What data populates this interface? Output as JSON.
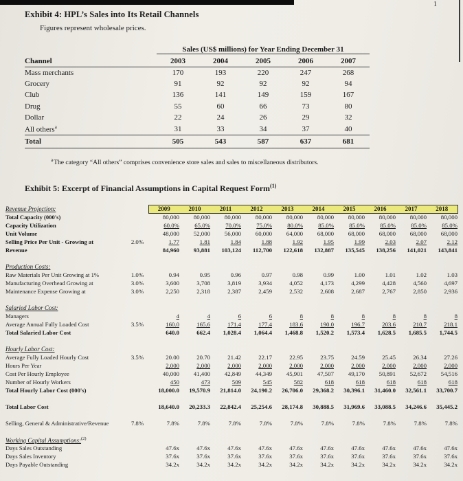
{
  "page": {
    "page_number": "1"
  },
  "exhibit4": {
    "title_prefix": "Exhibit 4",
    "title_rest": ": HPL’s Sales into Its Retail Channels",
    "subtitle": "Figures represent wholesale prices.",
    "table": {
      "span_header": "Sales (US$ millions) for Year Ending December 31",
      "channel_header": "Channel",
      "years": [
        "2003",
        "2004",
        "2005",
        "2006",
        "2007"
      ],
      "rows": [
        {
          "label": "Mass merchants",
          "values": [
            "170",
            "193",
            "220",
            "247",
            "268"
          ]
        },
        {
          "label": "Grocery",
          "values": [
            "91",
            "92",
            "92",
            "92",
            "94"
          ]
        },
        {
          "label": "Club",
          "values": [
            "136",
            "141",
            "149",
            "159",
            "167"
          ]
        },
        {
          "label": "Drug",
          "values": [
            "55",
            "60",
            "66",
            "73",
            "80"
          ]
        },
        {
          "label": "Dollar",
          "values": [
            "22",
            "24",
            "26",
            "29",
            "32"
          ]
        },
        {
          "label": "All others",
          "label_sup": "a",
          "values": [
            "31",
            "33",
            "34",
            "37",
            "40"
          ]
        }
      ],
      "total": {
        "label": "Total",
        "values": [
          "505",
          "543",
          "587",
          "637",
          "681"
        ]
      }
    },
    "footnote_marker": "a",
    "footnote_text": "The category “All others” comprises convenience store sales and sales to miscellaneous distributors."
  },
  "exhibit5": {
    "title_prefix": "Exhibit 5",
    "title_rest": ": Excerpt of Financial Assumptions in Capital Request Form",
    "title_sup": "(1)",
    "first_section_label": "Revenue Projection:",
    "highlight_color": "#ebe87c",
    "years": [
      "2009",
      "2010",
      "2011",
      "2012",
      "2013",
      "2014",
      "2015",
      "2016",
      "2017",
      "2018"
    ],
    "rows": [
      {
        "type": "data",
        "label": "Total Capacity (000's)",
        "bold": true,
        "values": [
          "80,000",
          "80,000",
          "80,000",
          "80,000",
          "80,000",
          "80,000",
          "80,000",
          "80,000",
          "80,000",
          "80,000"
        ]
      },
      {
        "type": "data",
        "label": "Capacity Utilization",
        "bold": true,
        "underline": true,
        "values": [
          "60.0%",
          "65.0%",
          "70.0%",
          "75.0%",
          "80.0%",
          "85.0%",
          "85.0%",
          "85.0%",
          "85.0%",
          "85.0%"
        ]
      },
      {
        "type": "data",
        "label": "Unit Volume",
        "bold": true,
        "values": [
          "48,000",
          "52,000",
          "56,000",
          "60,000",
          "64,000",
          "68,000",
          "68,000",
          "68,000",
          "68,000",
          "68,000"
        ]
      },
      {
        "type": "data",
        "label": "Selling Price Per Unit - Growing at",
        "bold": true,
        "rate": "2.0%",
        "underline": true,
        "values": [
          "1.77",
          "1.81",
          "1.84",
          "1.88",
          "1.92",
          "1.95",
          "1.99",
          "2.03",
          "2.07",
          "2.12"
        ]
      },
      {
        "type": "data",
        "label": "Revenue",
        "bold": true,
        "values_bold": true,
        "values": [
          "84,960",
          "93,881",
          "103,124",
          "112,700",
          "122,618",
          "132,887",
          "135,545",
          "138,256",
          "141,021",
          "143,841"
        ]
      },
      {
        "type": "spacer"
      },
      {
        "type": "section",
        "label": "Production Costs:"
      },
      {
        "type": "data",
        "label": "Raw Materials Per Unit Growing at 1%",
        "rate": "1.0%",
        "values": [
          "0.94",
          "0.95",
          "0.96",
          "0.97",
          "0.98",
          "0.99",
          "1.00",
          "1.01",
          "1.02",
          "1.03"
        ]
      },
      {
        "type": "data",
        "label": "Manufacturing Overhead Growing at",
        "rate": "3.0%",
        "values": [
          "3,600",
          "3,708",
          "3,819",
          "3,934",
          "4,052",
          "4,173",
          "4,299",
          "4,428",
          "4,560",
          "4,697"
        ]
      },
      {
        "type": "data",
        "label": "Maintenance Expense Growing at",
        "rate": "3.0%",
        "values": [
          "2,250",
          "2,318",
          "2,387",
          "2,459",
          "2,532",
          "2,608",
          "2,687",
          "2,767",
          "2,850",
          "2,936"
        ]
      },
      {
        "type": "spacer"
      },
      {
        "type": "section",
        "label": "Salaried Labor Cost:"
      },
      {
        "type": "data",
        "label": "Managers",
        "underline": true,
        "values": [
          "4",
          "4",
          "6",
          "6",
          "8",
          "8",
          "8",
          "8",
          "8",
          "8"
        ]
      },
      {
        "type": "data",
        "label": "Average Annual Fully Loaded Cost",
        "rate": "3.5%",
        "underline": true,
        "values": [
          "160.0",
          "165.6",
          "171.4",
          "177.4",
          "183.6",
          "190.0",
          "196.7",
          "203.6",
          "210.7",
          "218.1"
        ]
      },
      {
        "type": "data",
        "label": "Total Salaried Labor Cost",
        "bold": true,
        "values_bold": true,
        "values": [
          "640.0",
          "662.4",
          "1,028.4",
          "1,064.4",
          "1,468.8",
          "1,520.2",
          "1,573.4",
          "1,628.5",
          "1,685.5",
          "1,744.5"
        ]
      },
      {
        "type": "spacer"
      },
      {
        "type": "section",
        "label": "Hourly Labor Cost:"
      },
      {
        "type": "data",
        "label": "Average Fully Loaded Hourly Cost",
        "rate": "3.5%",
        "values": [
          "20.00",
          "20.70",
          "21.42",
          "22.17",
          "22.95",
          "23.75",
          "24.59",
          "25.45",
          "26.34",
          "27.26"
        ]
      },
      {
        "type": "data",
        "label": "Hours Per Year",
        "underline": true,
        "values": [
          "2,000",
          "2,000",
          "2,000",
          "2,000",
          "2,000",
          "2,000",
          "2,000",
          "2,000",
          "2,000",
          "2,000"
        ]
      },
      {
        "type": "data",
        "label": "Cost Per Hourly Employee",
        "values": [
          "40,000",
          "41,400",
          "42,849",
          "44,349",
          "45,901",
          "47,507",
          "49,170",
          "50,891",
          "52,672",
          "54,516"
        ]
      },
      {
        "type": "data",
        "label": "Number of Hourly Workers",
        "underline": true,
        "values": [
          "450",
          "473",
          "509",
          "545",
          "582",
          "618",
          "618",
          "618",
          "618",
          "618"
        ]
      },
      {
        "type": "data",
        "label": "Total Hourly Labor Cost (000's)",
        "bold": true,
        "values_bold": true,
        "values": [
          "18,000.0",
          "19,570.9",
          "21,814.0",
          "24,190.2",
          "26,706.0",
          "29,368.2",
          "30,396.1",
          "31,460.0",
          "32,561.1",
          "33,700.7"
        ]
      },
      {
        "type": "spacer"
      },
      {
        "type": "data",
        "label": "Total Labor Cost",
        "bold": true,
        "values_bold": true,
        "values": [
          "18,640.0",
          "20,233.3",
          "22,842.4",
          "25,254.6",
          "28,174.8",
          "30,888.5",
          "31,969.6",
          "33,088.5",
          "34,246.6",
          "35,445.2"
        ]
      },
      {
        "type": "spacer"
      },
      {
        "type": "data",
        "label": "Selling, General & Administrative/Revenue",
        "rate": "7.8%",
        "values": [
          "7.8%",
          "7.8%",
          "7.8%",
          "7.8%",
          "7.8%",
          "7.8%",
          "7.8%",
          "7.8%",
          "7.8%",
          "7.8%"
        ]
      },
      {
        "type": "spacer"
      },
      {
        "type": "section",
        "label": "Working Capital Assumptions:",
        "label_sup": "(2)"
      },
      {
        "type": "data",
        "label": "Days Sales Outstanding",
        "values": [
          "47.6x",
          "47.6x",
          "47.6x",
          "47.6x",
          "47.6x",
          "47.6x",
          "47.6x",
          "47.6x",
          "47.6x",
          "47.6x"
        ]
      },
      {
        "type": "data",
        "label": "Days Sales Inventory",
        "values": [
          "37.6x",
          "37.6x",
          "37.6x",
          "37.6x",
          "37.6x",
          "37.6x",
          "37.6x",
          "37.6x",
          "37.6x",
          "37.6x"
        ]
      },
      {
        "type": "data",
        "label": "Days Payable Outstanding",
        "values": [
          "34.2x",
          "34.2x",
          "34.2x",
          "34.2x",
          "34.2x",
          "34.2x",
          "34.2x",
          "34.2x",
          "34.2x",
          "34.2x"
        ]
      }
    ]
  }
}
